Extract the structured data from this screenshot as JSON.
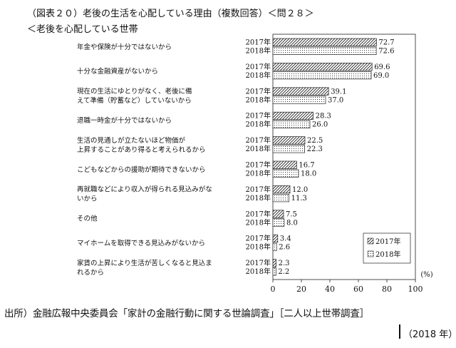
{
  "header": {
    "title": "（図表２０）老後の生活を心配している理由（複数回答）＜問２８＞",
    "subtitle": "＜老後を心配している世帯"
  },
  "footer": {
    "source": "出所）金融広報中央委員会「家計の金融行動に関する世論調査」［二人以上世帯調査］",
    "year": "（2018 年）"
  },
  "chart_data": {
    "type": "bar",
    "orientation": "horizontal",
    "title": "",
    "xlabel": "(%)",
    "ylabel": "",
    "xlim": [
      0,
      100
    ],
    "xticks": [
      0,
      20,
      40,
      60,
      80,
      100
    ],
    "grid": false,
    "legend_position": "bottom-right",
    "categories": [
      [
        "年金や保険が十分ではないから"
      ],
      [
        "十分な金融資産がないから"
      ],
      [
        "現在の生活にゆとりがなく、老後に備",
        "えて準備（貯蓄など）していないから"
      ],
      [
        "退職一時金が十分ではないから"
      ],
      [
        "生活の見通しが立たないほど物価が",
        "上昇することがあり得ると考えられるから"
      ],
      [
        "こどもなどからの援助が期待できないから"
      ],
      [
        "再就職などにより収入が得られる見込みがな",
        "いから"
      ],
      [
        "その他"
      ],
      [
        "マイホームを取得できる見込みがないから"
      ],
      [
        "家賃の上昇により生活が苦しくなると見込ま",
        "れるから"
      ]
    ],
    "series": [
      {
        "name": "2017年",
        "row_label": "2017年",
        "pattern": "diagonal",
        "values": [
          72.7,
          69.6,
          39.1,
          28.3,
          22.5,
          16.7,
          12.0,
          7.5,
          3.4,
          2.3
        ]
      },
      {
        "name": "2018年",
        "row_label": "2018年",
        "pattern": "dots",
        "values": [
          72.6,
          69.0,
          37.0,
          26.0,
          22.3,
          18.0,
          11.3,
          8.0,
          2.6,
          2.2
        ]
      }
    ]
  }
}
